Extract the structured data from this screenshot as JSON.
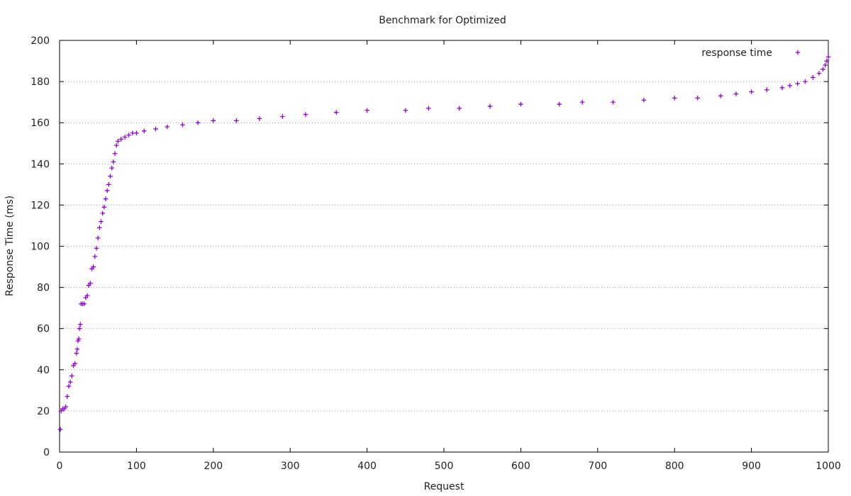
{
  "chart_data": {
    "type": "scatter",
    "title": "Benchmark for Optimized",
    "xlabel": "Request",
    "ylabel": "Response Time (ms)",
    "xlim": [
      0,
      1000
    ],
    "ylim": [
      0,
      200
    ],
    "x_ticks": [
      "0",
      "100",
      "200",
      "300",
      "400",
      "500",
      "600",
      "700",
      "800",
      "900",
      "1000"
    ],
    "y_ticks": [
      "0",
      "20",
      "40",
      "60",
      "80",
      "100",
      "120",
      "140",
      "160",
      "180",
      "200"
    ],
    "grid": "horizontal-dotted",
    "legend_position": "top-right",
    "marker": "plus",
    "series": [
      {
        "name": "response time",
        "color": "#9400d3",
        "points": [
          [
            1,
            11
          ],
          [
            2,
            20
          ],
          [
            4,
            21
          ],
          [
            6,
            21
          ],
          [
            8,
            22
          ],
          [
            10,
            27
          ],
          [
            12,
            32
          ],
          [
            14,
            34
          ],
          [
            16,
            37
          ],
          [
            18,
            42
          ],
          [
            20,
            43
          ],
          [
            22,
            48
          ],
          [
            23,
            50
          ],
          [
            24,
            54
          ],
          [
            25,
            55
          ],
          [
            26,
            60
          ],
          [
            27,
            62
          ],
          [
            28,
            72
          ],
          [
            30,
            72
          ],
          [
            32,
            72
          ],
          [
            34,
            75
          ],
          [
            36,
            76
          ],
          [
            38,
            81
          ],
          [
            40,
            82
          ],
          [
            42,
            89
          ],
          [
            44,
            90
          ],
          [
            46,
            95
          ],
          [
            48,
            99
          ],
          [
            50,
            104
          ],
          [
            52,
            109
          ],
          [
            54,
            112
          ],
          [
            56,
            116
          ],
          [
            58,
            119
          ],
          [
            60,
            123
          ],
          [
            62,
            127
          ],
          [
            64,
            130
          ],
          [
            66,
            134
          ],
          [
            68,
            138
          ],
          [
            70,
            141
          ],
          [
            72,
            145
          ],
          [
            74,
            149
          ],
          [
            76,
            151
          ],
          [
            80,
            152
          ],
          [
            85,
            153
          ],
          [
            90,
            154
          ],
          [
            95,
            155
          ],
          [
            100,
            155
          ],
          [
            110,
            156
          ],
          [
            125,
            157
          ],
          [
            140,
            158
          ],
          [
            160,
            159
          ],
          [
            180,
            160
          ],
          [
            200,
            161
          ],
          [
            230,
            161
          ],
          [
            260,
            162
          ],
          [
            290,
            163
          ],
          [
            320,
            164
          ],
          [
            360,
            165
          ],
          [
            400,
            166
          ],
          [
            450,
            166
          ],
          [
            480,
            167
          ],
          [
            520,
            167
          ],
          [
            560,
            168
          ],
          [
            600,
            169
          ],
          [
            650,
            169
          ],
          [
            680,
            170
          ],
          [
            720,
            170
          ],
          [
            760,
            171
          ],
          [
            800,
            172
          ],
          [
            830,
            172
          ],
          [
            860,
            173
          ],
          [
            880,
            174
          ],
          [
            900,
            175
          ],
          [
            920,
            176
          ],
          [
            940,
            177
          ],
          [
            950,
            178
          ],
          [
            960,
            179
          ],
          [
            970,
            180
          ],
          [
            980,
            182
          ],
          [
            988,
            184
          ],
          [
            993,
            186
          ],
          [
            996,
            188
          ],
          [
            998,
            190
          ],
          [
            1000,
            192
          ]
        ]
      }
    ]
  }
}
